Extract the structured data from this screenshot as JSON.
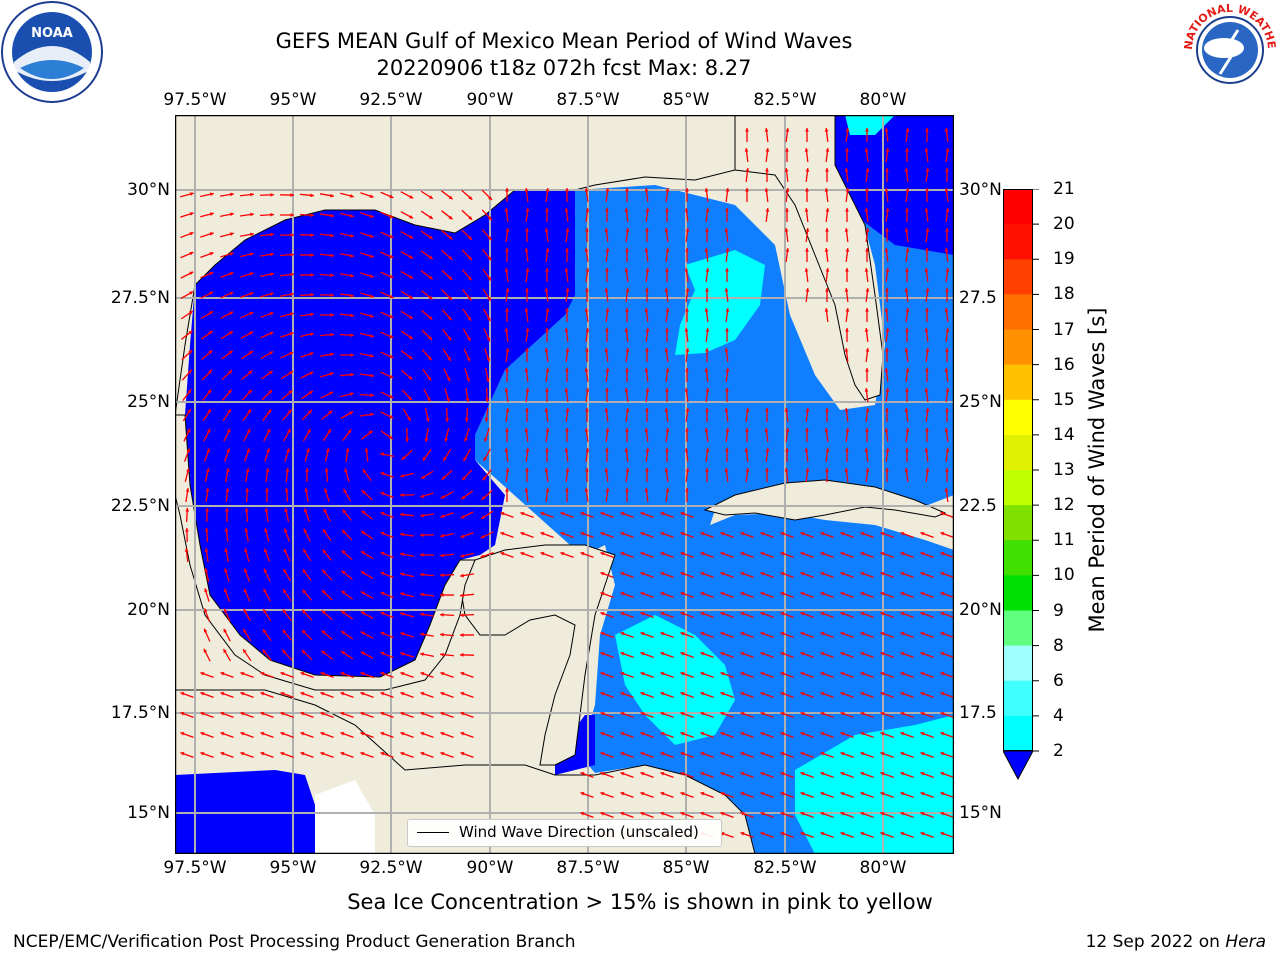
{
  "title_line1": "GEFS MEAN Gulf of Mexico Mean Period of Wind Waves",
  "title_line2": "20220906 t18z 072h fcst   Max: 8.27",
  "lon_labels": [
    "97.5°W",
    "95°W",
    "92.5°W",
    "90°W",
    "87.5°W",
    "85°W",
    "82.5°W",
    "80°W"
  ],
  "lat_labels": [
    "30°N",
    "27.5°N",
    "25°N",
    "22.5°N",
    "20°N",
    "17.5°N",
    "15°N"
  ],
  "lat_labels_right": [
    "30°N",
    "27.5",
    "25°N",
    "22.5",
    "20°N",
    "17.5",
    "15°N"
  ],
  "legend_label": "Wind Wave Direction (unscaled)",
  "colorbar": {
    "title": "Mean Period of Wind Waves [s]",
    "ticks": [
      "21",
      "20",
      "19",
      "18",
      "17",
      "16",
      "15",
      "14",
      "13",
      "12",
      "11",
      "10",
      "9",
      "8",
      "6",
      "4",
      "2"
    ],
    "colors": [
      "#0000ff",
      "#0080ff",
      "#00ffff",
      "#40ffff",
      "#a0ffff",
      "#60ff80",
      "#00e000",
      "#40e000",
      "#80e000",
      "#c0ff00",
      "#e0f000",
      "#ffff00",
      "#ffc000",
      "#ff9000",
      "#ff7000",
      "#ff4000",
      "#ff1000",
      "#ff0000"
    ]
  },
  "sea_ice_note": "Sea Ice Concentration > 15% is shown in pink to yellow",
  "credit": "NCEP/EMC/Verification Post Processing Product Generation Branch",
  "date_text": "12 Sep 2022 on ",
  "host_text": "Hera",
  "noaa_logo_text": "NOAA",
  "nws_logo_text": "NATIONAL WEATHER SERVICE",
  "map_colors": {
    "land": "#efecdc",
    "sea_dark": "#0000ff",
    "sea_mid": "#0f7fff",
    "sea_light": "#00ffff",
    "arrow": "#ff0000",
    "grid": "#b0b0b0"
  }
}
